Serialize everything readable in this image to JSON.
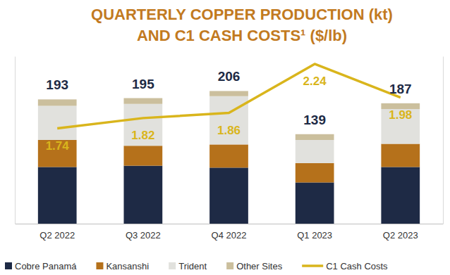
{
  "chart_data": {
    "type": "bar",
    "stacked": true,
    "title": [
      "QUARTERLY COPPER PRODUCTION (kt)",
      "AND C1 CASH COSTS¹ ($/lb)"
    ],
    "categories": [
      "Q2 2022",
      "Q3 2022",
      "Q4 2022",
      "Q1 2023",
      "Q2 2023"
    ],
    "series": [
      {
        "name": "Cobre Panamá",
        "color": "#1e2a45",
        "values": [
          88,
          90,
          87,
          64,
          88
        ]
      },
      {
        "name": "Kansanshi",
        "color": "#b5711b",
        "values": [
          42,
          31,
          36,
          30,
          36
        ]
      },
      {
        "name": "Trident",
        "color": "#e1e1dd",
        "values": [
          53,
          65,
          75,
          36,
          54
        ]
      },
      {
        "name": "Other Sites",
        "color": "#cbbf9d",
        "values": [
          10,
          9,
          8,
          9,
          9
        ]
      },
      {
        "name": "C1 Cash Costs",
        "type": "line",
        "axis": "y2",
        "color": "#d9b51c",
        "data_labels": true,
        "values": [
          1.74,
          1.82,
          1.86,
          2.24,
          1.98
        ]
      }
    ],
    "totals": [
      193,
      195,
      206,
      139,
      187
    ],
    "ylim": [
      0,
      260
    ],
    "yticks": [],
    "y2lim": [
      1,
      2.3
    ],
    "y2ticks": [],
    "tick_labels": "x",
    "legend": "bottom",
    "grid": false
  }
}
